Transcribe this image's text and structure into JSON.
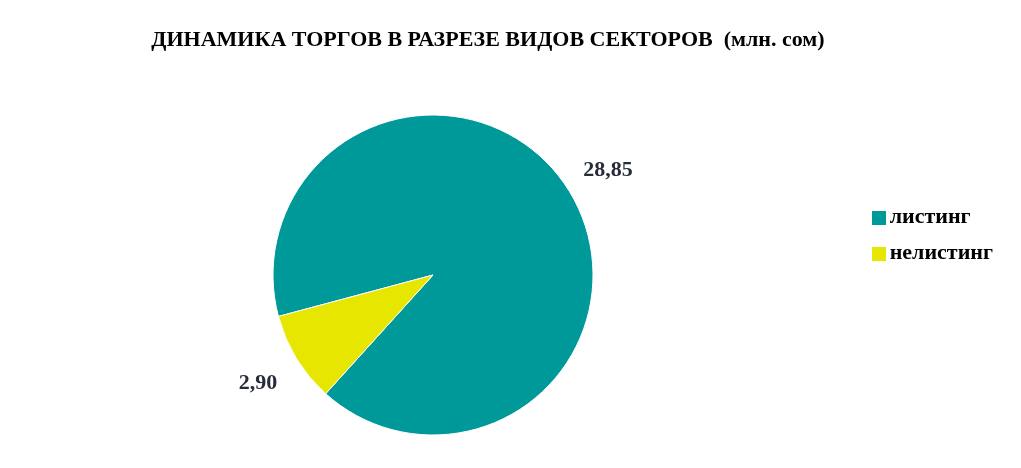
{
  "chart_data": {
    "type": "pie",
    "title": "ДИНАМИКА ТОРГОВ В РАЗРЕЗЕ ВИДОВ СЕКТОРОВ  (млн. сом)",
    "categories": [
      "листинг",
      "нелистинг"
    ],
    "values": [
      28.85,
      2.9
    ],
    "colors": [
      "#009999",
      "#e6e600"
    ],
    "value_labels": [
      "28,85",
      "2,90"
    ],
    "legend": "right"
  }
}
